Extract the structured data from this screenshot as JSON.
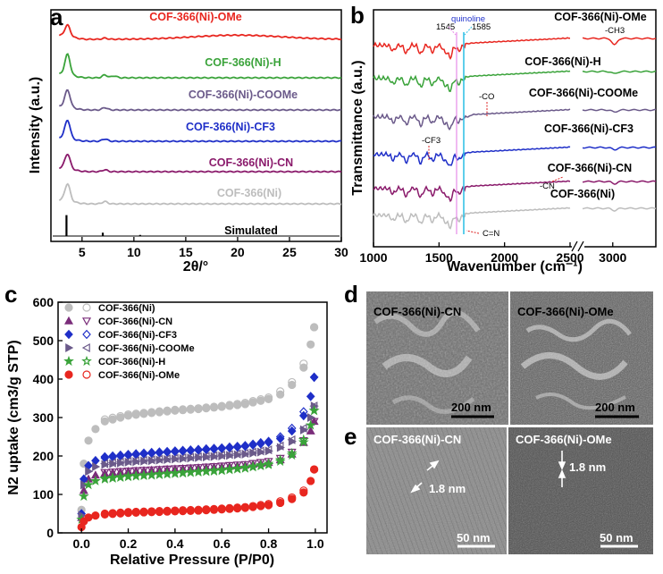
{
  "chart_data": [
    {
      "panel": "a",
      "type": "line",
      "xlabel": "2θ/°",
      "ylabel": "Intensity (a.u.)",
      "xlim": [
        2,
        30
      ],
      "xticks": [
        "5",
        "10",
        "15",
        "20",
        "25",
        "30"
      ],
      "series": [
        {
          "name": "COF-366(Ni)-OMe",
          "color": "#e8261f",
          "offset": 6,
          "peaks": [
            [
              3.6,
              0.45
            ],
            [
              7.2,
              0.05
            ]
          ],
          "hump": 0.18
        },
        {
          "name": "COF-366(Ni)-H",
          "color": "#3aa33a",
          "offset": 5,
          "peaks": [
            [
              3.6,
              0.85
            ],
            [
              7.2,
              0.12
            ],
            [
              8.1,
              0.08
            ]
          ],
          "hump": 0.0
        },
        {
          "name": "COF-366(Ni)-COOMe",
          "color": "#6b5a8a",
          "offset": 4,
          "peaks": [
            [
              3.6,
              0.7
            ],
            [
              7.2,
              0.1
            ]
          ],
          "hump": 0.0
        },
        {
          "name": "COF-366(Ni)-CF3",
          "color": "#1f2fc8",
          "offset": 3,
          "peaks": [
            [
              3.6,
              0.75
            ],
            [
              7.2,
              0.1
            ]
          ],
          "hump": 0.0
        },
        {
          "name": "COF-366(Ni)-CN",
          "color": "#8a1a6b",
          "offset": 2,
          "peaks": [
            [
              3.6,
              0.6
            ],
            [
              7.2,
              0.08
            ]
          ],
          "hump": 0.0
        },
        {
          "name": "COF-366(Ni)",
          "color": "#bdbdbd",
          "offset": 1,
          "peaks": [
            [
              3.6,
              0.7
            ],
            [
              7.2,
              0.1
            ]
          ],
          "hump": 0.0
        },
        {
          "name": "Simulated",
          "color": "#000000",
          "offset": 0,
          "sticks": [
            [
              3.5,
              0.75
            ],
            [
              7.0,
              0.12
            ],
            [
              10.6,
              0.04
            ]
          ]
        }
      ]
    },
    {
      "panel": "b",
      "type": "line",
      "xlabel": "Wavenumber (cm⁻¹)",
      "ylabel": "Transmittance (a.u.)",
      "xticks": [
        "1000",
        "1500",
        "2000",
        "2500",
        "3000"
      ],
      "axis_break": true,
      "series": [
        {
          "name": "COF-366(Ni)-OMe",
          "color": "#e8261f"
        },
        {
          "name": "COF-366(Ni)-H",
          "color": "#3aa33a"
        },
        {
          "name": "COF-366(Ni)-COOMe",
          "color": "#6b5a8a"
        },
        {
          "name": "COF-366(Ni)-CF3",
          "color": "#1f2fc8"
        },
        {
          "name": "COF-366(Ni)-CN",
          "color": "#8a1a6b"
        },
        {
          "name": "COF-366(Ni)",
          "color": "#bdbdbd"
        }
      ],
      "annotations": [
        "1545",
        "quinoline",
        "1585",
        "-CH3",
        "-CO",
        "-CF3",
        "-CN",
        "C=N"
      ]
    },
    {
      "panel": "c",
      "type": "scatter",
      "xlabel": "Relative Pressure (P/P0)",
      "ylabel": "N2 uptake (cm3/g STP)",
      "xlim": [
        -0.1,
        1.05
      ],
      "ylim": [
        0,
        600
      ],
      "xticks": [
        "0.0",
        "0.2",
        "0.4",
        "0.6",
        "0.8",
        "1.0"
      ],
      "yticks": [
        "0",
        "100",
        "200",
        "300",
        "400",
        "500",
        "600"
      ],
      "series": [
        {
          "name": "COF-366(Ni)",
          "color": "#bdbdbd",
          "marker": "circle",
          "adsorption": [
            [
              0.0,
              60
            ],
            [
              0.01,
              180
            ],
            [
              0.03,
              240
            ],
            [
              0.06,
              270
            ],
            [
              0.1,
              290
            ],
            [
              0.2,
              305
            ],
            [
              0.3,
              312
            ],
            [
              0.4,
              318
            ],
            [
              0.5,
              322
            ],
            [
              0.6,
              328
            ],
            [
              0.7,
              335
            ],
            [
              0.8,
              348
            ],
            [
              0.85,
              360
            ],
            [
              0.9,
              385
            ],
            [
              0.95,
              430
            ],
            [
              0.98,
              490
            ],
            [
              0.995,
              535
            ]
          ],
          "desorption": [
            [
              0.995,
              535
            ],
            [
              0.95,
              440
            ],
            [
              0.9,
              392
            ],
            [
              0.85,
              368
            ],
            [
              0.8,
              352
            ],
            [
              0.7,
              338
            ],
            [
              0.6,
              330
            ],
            [
              0.5,
              324
            ],
            [
              0.4,
              320
            ],
            [
              0.3,
              314
            ],
            [
              0.2,
              308
            ],
            [
              0.1,
              295
            ]
          ]
        },
        {
          "name": "COF-366(Ni)-CN",
          "color": "#7a2d7a",
          "marker": "triangle",
          "adsorption": [
            [
              0.0,
              40
            ],
            [
              0.01,
              110
            ],
            [
              0.03,
              140
            ],
            [
              0.06,
              150
            ],
            [
              0.1,
              155
            ],
            [
              0.2,
              160
            ],
            [
              0.3,
              163
            ],
            [
              0.4,
              166
            ],
            [
              0.5,
              169
            ],
            [
              0.6,
              172
            ],
            [
              0.7,
              176
            ],
            [
              0.8,
              183
            ],
            [
              0.85,
              190
            ],
            [
              0.9,
              205
            ],
            [
              0.95,
              235
            ],
            [
              0.98,
              265
            ],
            [
              0.995,
              290
            ]
          ],
          "desorption": [
            [
              0.995,
              290
            ],
            [
              0.95,
              240
            ],
            [
              0.9,
              210
            ],
            [
              0.85,
              194
            ],
            [
              0.8,
              186
            ],
            [
              0.7,
              178
            ],
            [
              0.6,
              174
            ],
            [
              0.5,
              170
            ],
            [
              0.4,
              167
            ],
            [
              0.3,
              164
            ],
            [
              0.2,
              161
            ],
            [
              0.1,
              157
            ]
          ]
        },
        {
          "name": "COF-366(Ni)-CF3",
          "color": "#1f2fc8",
          "marker": "diamond",
          "adsorption": [
            [
              0.0,
              50
            ],
            [
              0.01,
              140
            ],
            [
              0.03,
              175
            ],
            [
              0.06,
              188
            ],
            [
              0.1,
              195
            ],
            [
              0.2,
              202
            ],
            [
              0.3,
              207
            ],
            [
              0.4,
              211
            ],
            [
              0.5,
              215
            ],
            [
              0.6,
              219
            ],
            [
              0.7,
              225
            ],
            [
              0.8,
              235
            ],
            [
              0.85,
              245
            ],
            [
              0.9,
              265
            ],
            [
              0.95,
              305
            ],
            [
              0.98,
              355
            ],
            [
              0.995,
              405
            ]
          ],
          "desorption": [
            [
              0.995,
              405
            ],
            [
              0.95,
              315
            ],
            [
              0.9,
              272
            ],
            [
              0.85,
              250
            ],
            [
              0.8,
              238
            ],
            [
              0.7,
              227
            ],
            [
              0.6,
              221
            ],
            [
              0.5,
              217
            ],
            [
              0.4,
              213
            ],
            [
              0.3,
              209
            ],
            [
              0.2,
              204
            ],
            [
              0.1,
              198
            ]
          ]
        },
        {
          "name": "COF-366(Ni)-COOMe",
          "color": "#6b5a8a",
          "marker": "left-triangle",
          "adsorption": [
            [
              0.0,
              45
            ],
            [
              0.01,
              125
            ],
            [
              0.03,
              160
            ],
            [
              0.06,
              172
            ],
            [
              0.1,
              178
            ],
            [
              0.2,
              184
            ],
            [
              0.3,
              188
            ],
            [
              0.4,
              192
            ],
            [
              0.5,
              196
            ],
            [
              0.6,
              200
            ],
            [
              0.7,
              205
            ],
            [
              0.8,
              213
            ],
            [
              0.85,
              222
            ],
            [
              0.9,
              238
            ],
            [
              0.95,
              268
            ],
            [
              0.98,
              300
            ],
            [
              0.995,
              330
            ]
          ],
          "desorption": [
            [
              0.995,
              330
            ],
            [
              0.95,
              272
            ],
            [
              0.9,
              242
            ],
            [
              0.85,
              226
            ],
            [
              0.8,
              216
            ],
            [
              0.7,
              207
            ],
            [
              0.6,
              202
            ],
            [
              0.5,
              198
            ],
            [
              0.4,
              194
            ],
            [
              0.3,
              190
            ],
            [
              0.2,
              186
            ],
            [
              0.1,
              180
            ]
          ]
        },
        {
          "name": "COF-366(Ni)-H",
          "color": "#3aa33a",
          "marker": "star",
          "adsorption": [
            [
              0.0,
              35
            ],
            [
              0.01,
              95
            ],
            [
              0.03,
              125
            ],
            [
              0.06,
              135
            ],
            [
              0.1,
              140
            ],
            [
              0.2,
              146
            ],
            [
              0.3,
              150
            ],
            [
              0.4,
              154
            ],
            [
              0.5,
              158
            ],
            [
              0.6,
              162
            ],
            [
              0.7,
              168
            ],
            [
              0.8,
              177
            ],
            [
              0.85,
              186
            ],
            [
              0.9,
              202
            ],
            [
              0.95,
              236
            ],
            [
              0.98,
              280
            ],
            [
              0.995,
              318
            ]
          ],
          "desorption": [
            [
              0.995,
              318
            ],
            [
              0.95,
              242
            ],
            [
              0.9,
              207
            ],
            [
              0.85,
              190
            ],
            [
              0.8,
              180
            ],
            [
              0.7,
              170
            ],
            [
              0.6,
              164
            ],
            [
              0.5,
              160
            ],
            [
              0.4,
              156
            ],
            [
              0.3,
              152
            ],
            [
              0.2,
              148
            ],
            [
              0.1,
              142
            ]
          ]
        },
        {
          "name": "COF-366(Ni)-OMe",
          "color": "#e8261f",
          "marker": "circle",
          "adsorption": [
            [
              0.0,
              15
            ],
            [
              0.01,
              30
            ],
            [
              0.03,
              40
            ],
            [
              0.06,
              45
            ],
            [
              0.1,
              48
            ],
            [
              0.2,
              52
            ],
            [
              0.3,
              54
            ],
            [
              0.4,
              56
            ],
            [
              0.5,
              58
            ],
            [
              0.6,
              61
            ],
            [
              0.7,
              65
            ],
            [
              0.8,
              72
            ],
            [
              0.85,
              78
            ],
            [
              0.9,
              88
            ],
            [
              0.95,
              105
            ],
            [
              0.98,
              135
            ],
            [
              0.995,
              165
            ]
          ],
          "desorption": [
            [
              0.995,
              165
            ],
            [
              0.95,
              110
            ],
            [
              0.9,
              92
            ],
            [
              0.85,
              82
            ],
            [
              0.8,
              75
            ],
            [
              0.7,
              67
            ],
            [
              0.6,
              63
            ],
            [
              0.5,
              60
            ],
            [
              0.4,
              58
            ],
            [
              0.3,
              56
            ],
            [
              0.2,
              54
            ],
            [
              0.1,
              50
            ]
          ]
        }
      ]
    }
  ],
  "panels": {
    "a": {
      "letter": "a"
    },
    "b": {
      "letter": "b"
    },
    "c": {
      "letter": "c"
    },
    "d": {
      "letter": "d",
      "left_label": "COF-366(Ni)-CN",
      "right_label": "COF-366(Ni)-OMe",
      "scale_left": "200 nm",
      "scale_right": "200 nm"
    },
    "e": {
      "letter": "e",
      "left_label": "COF-366(Ni)-CN",
      "right_label": "COF-366(Ni)-OMe",
      "spacing_left": "1.8 nm",
      "spacing_right": "1.8 nm",
      "scale_left": "50 nm",
      "scale_right": "50 nm"
    }
  }
}
